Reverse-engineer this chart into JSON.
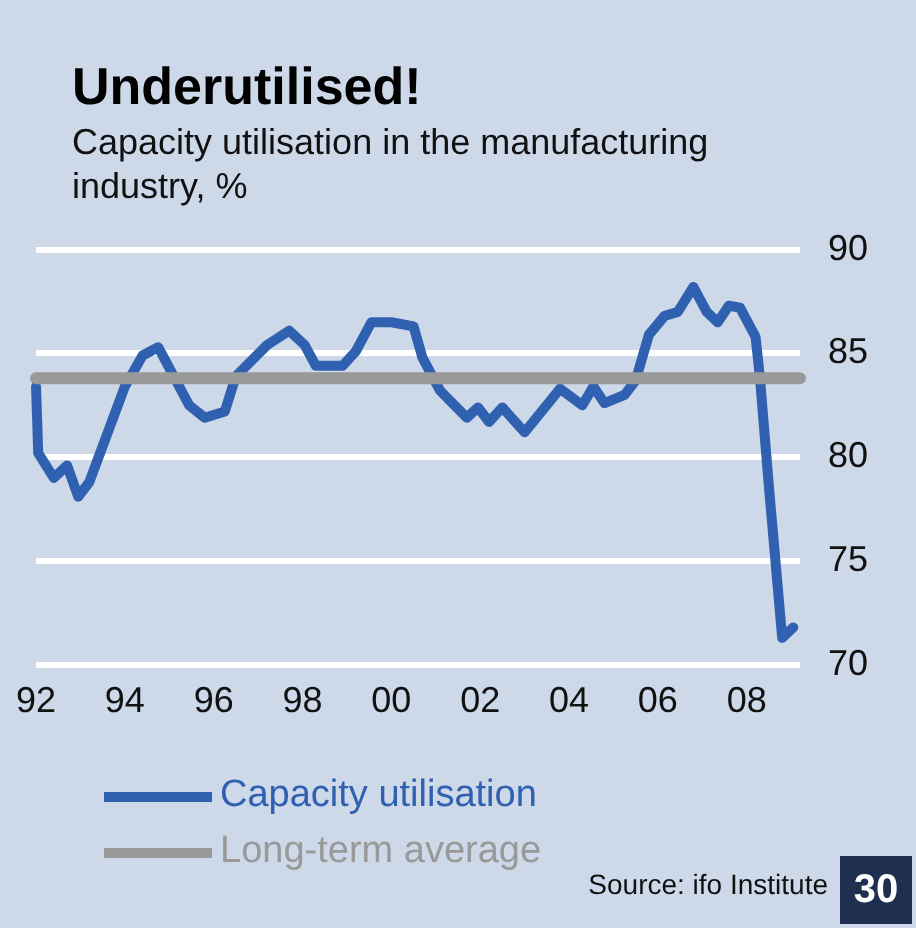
{
  "chart_data": {
    "type": "line",
    "title": "Underutilised!",
    "subtitle": "Capacity utilisation in the manufacturing industry, %",
    "xlim": [
      1992,
      2009.2
    ],
    "xticks": [
      {
        "value": 1992,
        "label": "92"
      },
      {
        "value": 1994,
        "label": "94"
      },
      {
        "value": 1996,
        "label": "96"
      },
      {
        "value": 1998,
        "label": "98"
      },
      {
        "value": 2000,
        "label": "00"
      },
      {
        "value": 2002,
        "label": "02"
      },
      {
        "value": 2004,
        "label": "04"
      },
      {
        "value": 2006,
        "label": "06"
      },
      {
        "value": 2008,
        "label": "08"
      }
    ],
    "ylim": [
      70,
      90
    ],
    "yticks": [
      70,
      75,
      80,
      85,
      90
    ],
    "grid": "y",
    "legend": "bottom",
    "line_style": "solid",
    "marker": "none",
    "series": [
      {
        "name": "Capacity utilisation",
        "color": "#3060b0",
        "x": [
          1992.0,
          1992.05,
          1992.4,
          1992.7,
          1992.95,
          1993.2,
          1994.0,
          1994.4,
          1994.75,
          1995.45,
          1995.8,
          1996.25,
          1996.5,
          1997.2,
          1997.7,
          1998.05,
          1998.3,
          1998.9,
          1999.2,
          1999.55,
          2000.0,
          2000.5,
          2000.7,
          2001.1,
          2001.7,
          2001.95,
          2002.2,
          2002.5,
          2003.0,
          2003.8,
          2004.3,
          2004.55,
          2004.8,
          2005.25,
          2005.5,
          2005.8,
          2006.15,
          2006.45,
          2006.8,
          2007.1,
          2007.35,
          2007.6,
          2007.85,
          2008.2,
          2008.3,
          2008.5,
          2008.8,
          2009.05
        ],
        "values": [
          83.4,
          80.2,
          79.0,
          79.6,
          78.1,
          78.8,
          83.4,
          84.9,
          85.3,
          82.5,
          81.9,
          82.2,
          83.9,
          85.4,
          86.1,
          85.4,
          84.4,
          84.4,
          85.1,
          86.5,
          86.5,
          86.3,
          84.8,
          83.2,
          81.9,
          82.4,
          81.7,
          82.4,
          81.2,
          83.3,
          82.5,
          83.4,
          82.6,
          83.0,
          83.7,
          85.9,
          86.8,
          87.0,
          88.2,
          87.0,
          86.5,
          87.3,
          87.2,
          85.8,
          83.8,
          78.6,
          71.3,
          71.8
        ]
      },
      {
        "name": "Long-term average",
        "color": "#999999",
        "x": [
          1992.0,
          2009.2
        ],
        "values": [
          83.8,
          83.8
        ]
      }
    ],
    "annotations": [
      "Source: ifo Institute",
      "30"
    ]
  }
}
